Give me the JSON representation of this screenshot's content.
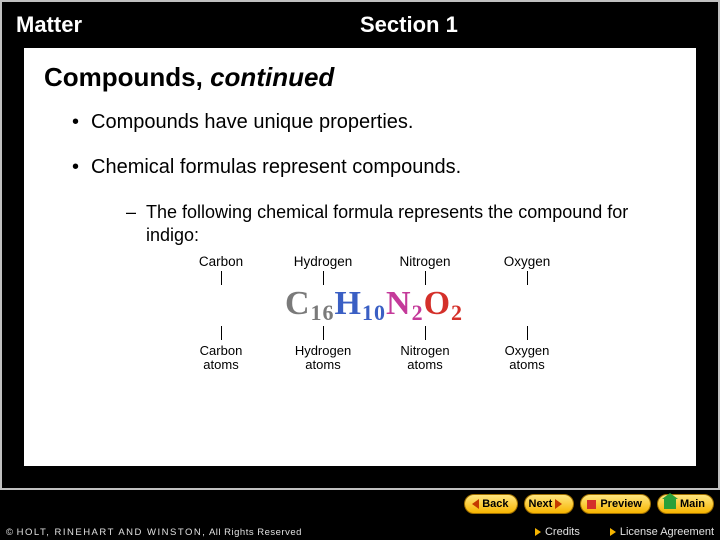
{
  "header": {
    "left": "Matter",
    "right": "Section 1"
  },
  "title": {
    "part1": "Compounds, ",
    "part2": "continued"
  },
  "bullets": {
    "b1": "Compounds have unique properties.",
    "b2": "Chemical formulas represent compounds.",
    "sub1": "The following chemical formula represents the compound for indigo:"
  },
  "formula": {
    "top_labels": [
      "Carbon",
      "Hydrogen",
      "Nitrogen",
      "Oxygen"
    ],
    "elements": [
      {
        "symbol": "C",
        "sub": "16",
        "color": "#7a7a7a"
      },
      {
        "symbol": "H",
        "sub": "10",
        "color": "#3a5fc4"
      },
      {
        "symbol": "N",
        "sub": "2",
        "color": "#c43a9a"
      },
      {
        "symbol": "O",
        "sub": "2",
        "color": "#d4302a"
      }
    ],
    "bottom_labels": [
      [
        "Carbon",
        "atoms"
      ],
      [
        "Hydrogen",
        "atoms"
      ],
      [
        "Nitrogen",
        "atoms"
      ],
      [
        "Oxygen",
        "atoms"
      ]
    ]
  },
  "nav": {
    "back": "Back",
    "next": "Next",
    "preview": "Preview",
    "main": "Main"
  },
  "footer": {
    "copyright_prefix": "© ",
    "copyright_hrw": "HOLT, RINEHART AND WINSTON,",
    "copyright_suffix": " All Rights Reserved",
    "credits": "Credits",
    "license": "License Agreement"
  },
  "colors": {
    "frame_border": "#c0c0c0",
    "header_text": "#ffffff",
    "content_bg": "#ffffff",
    "nav_btn_bg_top": "#ffe680",
    "nav_btn_bg_bot": "#f7b500",
    "nav_btn_border": "#a07000",
    "nav_arrow_red": "#c43a00",
    "footer_text": "#e0e0e0"
  }
}
